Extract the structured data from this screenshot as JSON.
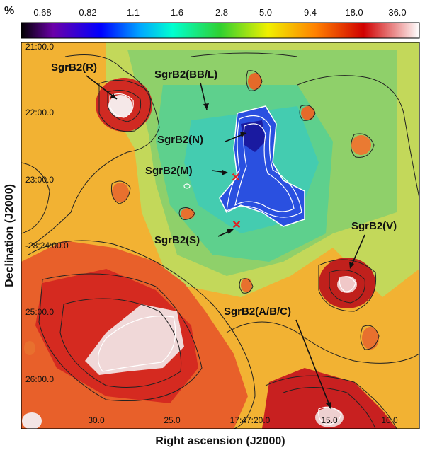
{
  "chart_data": {
    "type": "heatmap",
    "title": "",
    "xlabel": "Right ascension (J2000)",
    "ylabel": "Declination (J2000)",
    "colorbar": {
      "unit_label": "%",
      "ticks": [
        "0.68",
        "0.82",
        "1.1",
        "1.6",
        "2.8",
        "5.0",
        "9.4",
        "18.0",
        "36.0"
      ],
      "colormap": [
        "#000000",
        "#6b00a8",
        "#0000ff",
        "#00a8ff",
        "#00ffd0",
        "#30d030",
        "#f0f000",
        "#ff8000",
        "#d00000",
        "#ffffff"
      ]
    },
    "x_ticks": [
      "30.0",
      "25.0",
      "17:47:20.0",
      "15.0",
      "10.0"
    ],
    "y_ticks": [
      "21:00.0",
      "22:00.0",
      "23:00.0",
      "-28:24:00.0",
      "25:00.0",
      "26:00.0"
    ],
    "sources": [
      {
        "label": "SgrB2(R)"
      },
      {
        "label": "SgrB2(BB/L)"
      },
      {
        "label": "SgrB2(N)"
      },
      {
        "label": "SgrB2(M)",
        "marker": "x"
      },
      {
        "label": "SgrB2(S)",
        "marker": "x"
      },
      {
        "label": "SgrB2(V)"
      },
      {
        "label": "SgrB2(A/B/C)"
      }
    ]
  }
}
